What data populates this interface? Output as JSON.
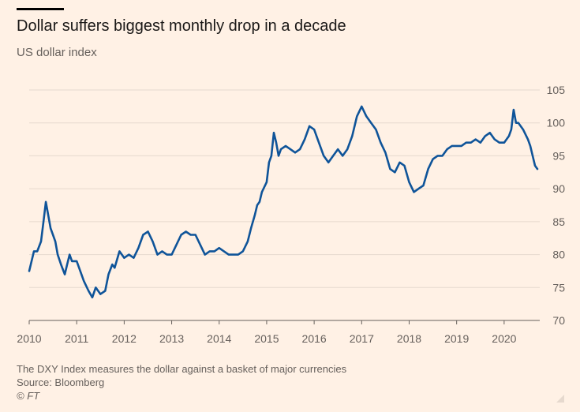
{
  "header": {
    "title": "Dollar suffers biggest monthly drop in a decade",
    "subtitle": "US dollar index"
  },
  "footer": {
    "note": "The DXY Index measures the dollar against a basket of major currencies",
    "source": "Source: Bloomberg",
    "credit": "© FT"
  },
  "chart_data": {
    "type": "line",
    "title": "Dollar suffers biggest monthly drop in a decade",
    "subtitle": "US dollar index",
    "xlabel": "",
    "ylabel": "",
    "xlim": [
      2010.0,
      2020.75
    ],
    "ylim": [
      70,
      105
    ],
    "x_ticks": [
      "2010",
      "2011",
      "2012",
      "2013",
      "2014",
      "2015",
      "2016",
      "2017",
      "2018",
      "2019",
      "2020"
    ],
    "y_ticks": [
      70,
      75,
      80,
      85,
      90,
      95,
      100,
      105
    ],
    "y_axis_side": "right",
    "grid": "horizontal",
    "line_color": "#0F5499",
    "series": [
      {
        "x": [
          2010.0,
          2010.05,
          2010.1,
          2010.17,
          2010.25,
          2010.3,
          2010.35,
          2010.4,
          2010.45,
          2010.5,
          2010.55,
          2010.6,
          2010.67,
          2010.75,
          2010.8,
          2010.85,
          2010.9,
          2011.0,
          2011.1,
          2011.15,
          2011.25,
          2011.33,
          2011.4,
          2011.5,
          2011.6,
          2011.67,
          2011.75,
          2011.8,
          2011.9,
          2012.0,
          2012.1,
          2012.2,
          2012.3,
          2012.4,
          2012.5,
          2012.6,
          2012.7,
          2012.8,
          2012.9,
          2013.0,
          2013.1,
          2013.2,
          2013.3,
          2013.4,
          2013.5,
          2013.6,
          2013.7,
          2013.8,
          2013.9,
          2014.0,
          2014.1,
          2014.2,
          2014.3,
          2014.4,
          2014.5,
          2014.6,
          2014.67,
          2014.75,
          2014.8,
          2014.85,
          2014.9,
          2015.0,
          2015.05,
          2015.1,
          2015.15,
          2015.2,
          2015.25,
          2015.3,
          2015.4,
          2015.5,
          2015.6,
          2015.7,
          2015.8,
          2015.9,
          2016.0,
          2016.1,
          2016.2,
          2016.3,
          2016.4,
          2016.5,
          2016.6,
          2016.7,
          2016.8,
          2016.9,
          2017.0,
          2017.1,
          2017.2,
          2017.3,
          2017.4,
          2017.5,
          2017.6,
          2017.7,
          2017.8,
          2017.9,
          2018.0,
          2018.1,
          2018.2,
          2018.3,
          2018.4,
          2018.5,
          2018.6,
          2018.7,
          2018.8,
          2018.9,
          2019.0,
          2019.1,
          2019.2,
          2019.3,
          2019.4,
          2019.5,
          2019.6,
          2019.7,
          2019.8,
          2019.9,
          2020.0,
          2020.1,
          2020.15,
          2020.2,
          2020.25,
          2020.3,
          2020.4,
          2020.5,
          2020.55,
          2020.6,
          2020.65,
          2020.7
        ],
        "y": [
          77.5,
          79.0,
          80.5,
          80.5,
          82.0,
          85.0,
          88.0,
          86.0,
          84.0,
          83.0,
          82.0,
          80.0,
          78.5,
          77.0,
          78.5,
          80.0,
          79.0,
          79.0,
          77.0,
          76.0,
          74.5,
          73.5,
          75.0,
          74.0,
          74.5,
          77.0,
          78.5,
          78.0,
          80.5,
          79.5,
          80.0,
          79.5,
          81.0,
          83.0,
          83.5,
          82.0,
          80.0,
          80.5,
          80.0,
          80.0,
          81.5,
          83.0,
          83.5,
          83.0,
          83.0,
          81.5,
          80.0,
          80.5,
          80.5,
          81.0,
          80.5,
          80.0,
          80.0,
          80.0,
          80.5,
          82.0,
          84.0,
          86.0,
          87.5,
          88.0,
          89.5,
          91.0,
          94.0,
          95.0,
          98.5,
          97.0,
          95.0,
          96.0,
          96.5,
          96.0,
          95.5,
          96.0,
          97.5,
          99.5,
          99.0,
          97.0,
          95.0,
          94.0,
          95.0,
          96.0,
          95.0,
          96.0,
          98.0,
          101.0,
          102.5,
          101.0,
          100.0,
          99.0,
          97.0,
          95.5,
          93.0,
          92.5,
          94.0,
          93.5,
          91.0,
          89.5,
          90.0,
          90.5,
          93.0,
          94.5,
          95.0,
          95.0,
          96.0,
          96.5,
          96.5,
          96.5,
          97.0,
          97.0,
          97.5,
          97.0,
          98.0,
          98.5,
          97.5,
          97.0,
          97.0,
          98.0,
          99.0,
          102.0,
          100.0,
          100.0,
          99.0,
          97.5,
          96.5,
          95.0,
          93.5,
          93.0
        ]
      }
    ]
  }
}
